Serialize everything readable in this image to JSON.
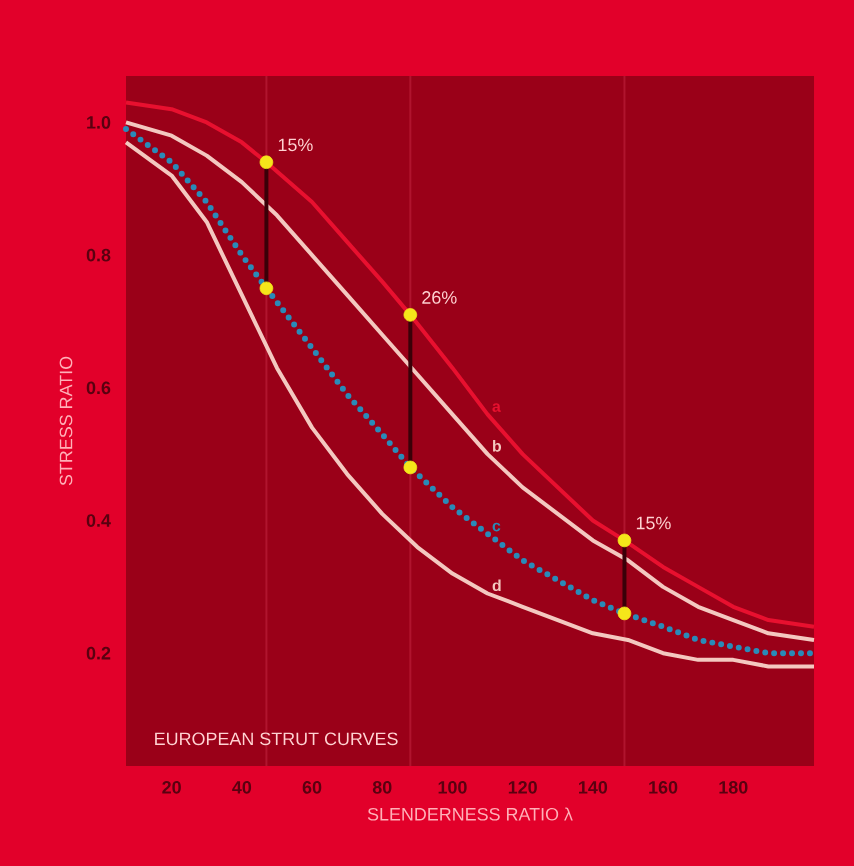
{
  "chart_data": {
    "type": "line",
    "xlabel": "SLENDERNESS RATIO λ",
    "ylabel": "STRESS RATIO",
    "xlim": [
      7,
      203
    ],
    "ylim": [
      0.03,
      1.07
    ],
    "xticks": [
      20,
      40,
      60,
      80,
      100,
      120,
      140,
      160,
      180
    ],
    "yticks": [
      {
        "value": 0.2,
        "label": "0.2"
      },
      {
        "value": 0.4,
        "label": "0.4"
      },
      {
        "value": 0.6,
        "label": "0.6"
      },
      {
        "value": 0.8,
        "label": "0.8"
      },
      {
        "value": 1.0,
        "label": "1.0"
      }
    ],
    "grid": false,
    "line_style": "solid",
    "marker": "none",
    "annotations": [
      {
        "text": "15%",
        "x": 47,
        "y": 0.94
      },
      {
        "text": "26%",
        "x": 88,
        "y": 0.71
      },
      {
        "text": "15%",
        "x": 149,
        "y": 0.37
      },
      "EUROPEAN STRUT CURVES"
    ],
    "ref_lines": [
      {
        "axis": "x",
        "value": 47,
        "color": "#b0142e"
      },
      {
        "axis": "x",
        "value": 88,
        "color": "#b0142e"
      },
      {
        "axis": "x",
        "value": 149,
        "color": "#b0142e"
      }
    ],
    "series": [
      {
        "name": "a",
        "color": "#e8102f",
        "x": [
          7,
          20,
          30,
          40,
          47,
          60,
          70,
          80,
          88,
          100,
          110,
          120,
          130,
          140,
          149,
          160,
          170,
          180,
          190,
          203
        ],
        "values": [
          1.03,
          1.02,
          1.0,
          0.97,
          0.94,
          0.88,
          0.82,
          0.76,
          0.71,
          0.63,
          0.56,
          0.5,
          0.45,
          0.4,
          0.37,
          0.33,
          0.3,
          0.27,
          0.25,
          0.24
        ]
      },
      {
        "name": "b",
        "color": "#f4c8c0",
        "x": [
          7,
          20,
          30,
          40,
          50,
          60,
          70,
          80,
          90,
          100,
          110,
          120,
          130,
          140,
          150,
          160,
          170,
          180,
          190,
          203
        ],
        "values": [
          1.0,
          0.98,
          0.95,
          0.91,
          0.86,
          0.8,
          0.74,
          0.68,
          0.62,
          0.56,
          0.5,
          0.45,
          0.41,
          0.37,
          0.34,
          0.3,
          0.27,
          0.25,
          0.23,
          0.22
        ]
      },
      {
        "name": "c",
        "color": "#2a8ab8",
        "line_style": "dotted",
        "x": [
          7,
          20,
          30,
          40,
          47,
          60,
          70,
          80,
          88,
          100,
          110,
          120,
          130,
          140,
          149,
          160,
          170,
          180,
          190,
          203
        ],
        "values": [
          0.99,
          0.94,
          0.88,
          0.8,
          0.75,
          0.66,
          0.59,
          0.53,
          0.48,
          0.42,
          0.38,
          0.34,
          0.31,
          0.28,
          0.26,
          0.24,
          0.22,
          0.21,
          0.2,
          0.2
        ]
      },
      {
        "name": "d",
        "color": "#f4c8c0",
        "x": [
          7,
          20,
          30,
          40,
          50,
          60,
          70,
          80,
          90,
          100,
          110,
          120,
          130,
          140,
          150,
          160,
          170,
          180,
          190,
          203
        ],
        "values": [
          0.97,
          0.92,
          0.85,
          0.74,
          0.63,
          0.54,
          0.47,
          0.41,
          0.36,
          0.32,
          0.29,
          0.27,
          0.25,
          0.23,
          0.22,
          0.2,
          0.19,
          0.19,
          0.18,
          0.18
        ]
      },
      {
        "color": "#3a0008",
        "x": [
          47,
          47
        ],
        "values": [
          0.94,
          0.75
        ]
      },
      {
        "color": "#3a0008",
        "x": [
          88,
          88
        ],
        "values": [
          0.71,
          0.48
        ]
      },
      {
        "color": "#3a0008",
        "x": [
          149,
          149
        ],
        "values": [
          0.37,
          0.26
        ]
      },
      {
        "type": "scatter",
        "marker": "circle",
        "color": "#f5e61a",
        "x": [
          47,
          47,
          88,
          88,
          149,
          149
        ],
        "values": [
          0.94,
          0.75,
          0.71,
          0.48,
          0.37,
          0.26
        ]
      }
    ]
  }
}
